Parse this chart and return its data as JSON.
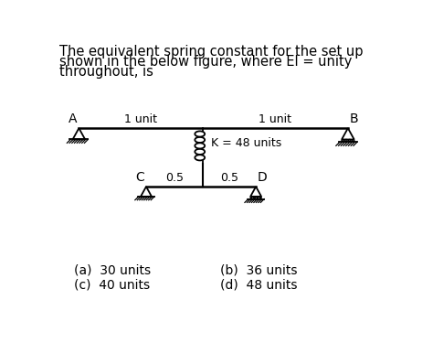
{
  "title_lines": [
    "The equivalent spring constant for the set up",
    "shown in the below figure, where EI = unity",
    "throughout, is"
  ],
  "bg_color": "#ffffff",
  "line_color": "#000000",
  "text_color": "#000000",
  "answers_left": [
    "(a)  30 units",
    "(c)  40 units"
  ],
  "answers_right": [
    "(b)  36 units",
    "(d)  48 units"
  ],
  "label_A": "A",
  "label_B": "B",
  "label_C": "C",
  "label_D": "D",
  "label_1unit_left": "1 unit",
  "label_1unit_right": "1 unit",
  "label_05_left": "0.5",
  "label_05_right": "0.5",
  "label_K": "K = 48 units",
  "font_size_title": 10.5,
  "font_size_labels": 9,
  "font_size_answers": 10
}
